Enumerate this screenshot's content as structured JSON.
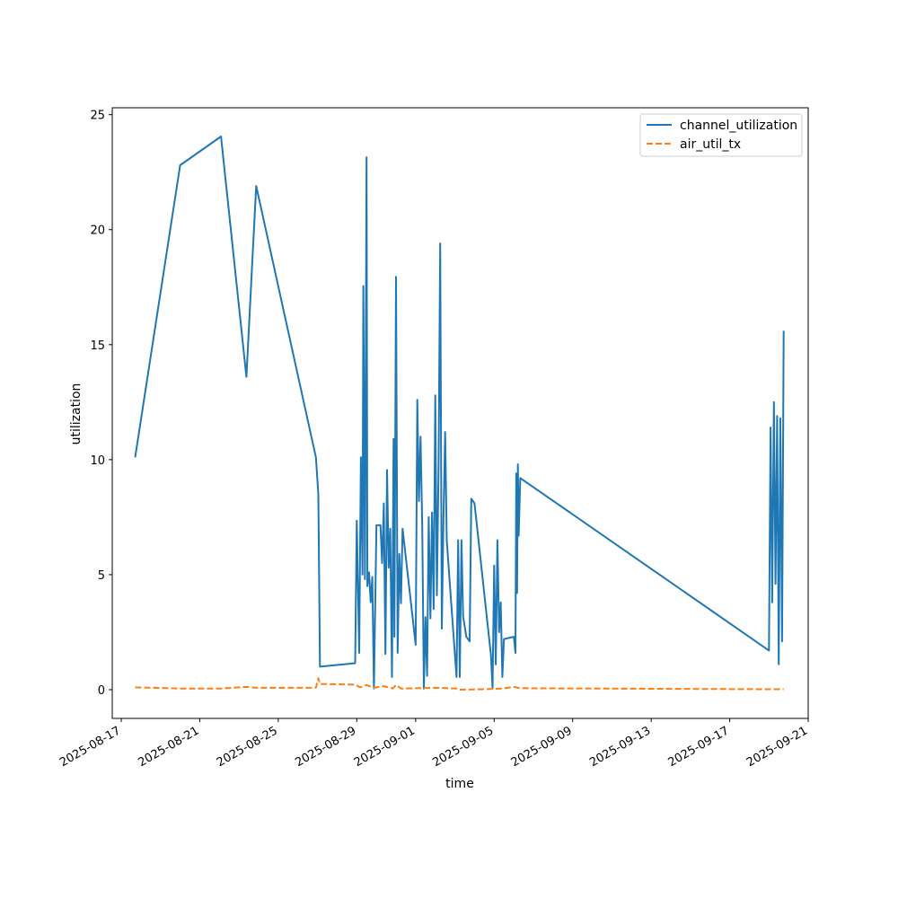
{
  "chart_data": {
    "type": "line",
    "title": "",
    "xlabel": "time",
    "ylabel": "utilization",
    "x_axis_type": "date",
    "xlim": [
      "2025-08-16T13:00",
      "2025-09-21T00:00"
    ],
    "ylim": [
      -1.25,
      25.3
    ],
    "x_ticks": [
      "2025-08-17",
      "2025-08-21",
      "2025-08-25",
      "2025-08-29",
      "2025-09-01",
      "2025-09-05",
      "2025-09-09",
      "2025-09-13",
      "2025-09-17",
      "2025-09-21"
    ],
    "y_ticks": [
      0,
      5,
      10,
      15,
      20,
      25
    ],
    "grid": false,
    "legend_position": "top-right",
    "series": [
      {
        "name": "channel_utilization",
        "color": "#1f77b4",
        "style": "solid",
        "points": [
          [
            "2025-08-17T17:00",
            10.1
          ],
          [
            "2025-08-20T00:00",
            22.8
          ],
          [
            "2025-08-22T02:00",
            24.05
          ],
          [
            "2025-08-23T09:00",
            13.6
          ],
          [
            "2025-08-23T17:00",
            19.1
          ],
          [
            "2025-08-23T21:00",
            21.9
          ],
          [
            "2025-08-26T22:00",
            10.1
          ],
          [
            "2025-08-27T01:00",
            8.5
          ],
          [
            "2025-08-27T03:00",
            1.0
          ],
          [
            "2025-08-28T22:00",
            1.15
          ],
          [
            "2025-08-29T00:00",
            7.35
          ],
          [
            "2025-08-29T03:00",
            1.6
          ],
          [
            "2025-08-29T05:00",
            10.1
          ],
          [
            "2025-08-29T07:00",
            5.0
          ],
          [
            "2025-08-29T08:00",
            17.55
          ],
          [
            "2025-08-29T10:00",
            4.8
          ],
          [
            "2025-08-29T12:00",
            23.15
          ],
          [
            "2025-08-29T13:00",
            4.5
          ],
          [
            "2025-08-29T15:00",
            5.1
          ],
          [
            "2025-08-29T17:00",
            3.8
          ],
          [
            "2025-08-29T19:00",
            4.9
          ],
          [
            "2025-08-29T21:00",
            0.05
          ],
          [
            "2025-08-30T00:00",
            7.15
          ],
          [
            "2025-08-30T05:00",
            7.15
          ],
          [
            "2025-08-30T07:00",
            5.5
          ],
          [
            "2025-08-30T09:00",
            8.1
          ],
          [
            "2025-08-30T11:00",
            1.55
          ],
          [
            "2025-08-30T13:00",
            9.55
          ],
          [
            "2025-08-30T15:00",
            5.3
          ],
          [
            "2025-08-30T17:00",
            7.0
          ],
          [
            "2025-08-30T19:00",
            0.55
          ],
          [
            "2025-08-30T21:00",
            10.9
          ],
          [
            "2025-08-30T22:00",
            2.3
          ],
          [
            "2025-08-31T00:00",
            17.95
          ],
          [
            "2025-08-31T02:00",
            1.6
          ],
          [
            "2025-08-31T04:00",
            5.9
          ],
          [
            "2025-08-31T06:00",
            3.75
          ],
          [
            "2025-08-31T08:00",
            7.0
          ],
          [
            "2025-09-01T00:00",
            1.95
          ],
          [
            "2025-09-01T02:00",
            12.6
          ],
          [
            "2025-09-01T04:00",
            8.2
          ],
          [
            "2025-09-01T06:00",
            11.0
          ],
          [
            "2025-09-01T08:00",
            7.1
          ],
          [
            "2025-09-01T10:00",
            0.05
          ],
          [
            "2025-09-01T12:00",
            3.15
          ],
          [
            "2025-09-01T14:00",
            0.6
          ],
          [
            "2025-09-01T16:00",
            7.5
          ],
          [
            "2025-09-01T18:00",
            3.1
          ],
          [
            "2025-09-01T20:00",
            7.7
          ],
          [
            "2025-09-01T22:00",
            3.5
          ],
          [
            "2025-09-02T00:00",
            12.8
          ],
          [
            "2025-09-02T02:00",
            4.1
          ],
          [
            "2025-09-02T04:00",
            9.8
          ],
          [
            "2025-09-02T06:00",
            19.4
          ],
          [
            "2025-09-02T08:00",
            2.65
          ],
          [
            "2025-09-02T10:00",
            7.4
          ],
          [
            "2025-09-02T12:00",
            11.2
          ],
          [
            "2025-09-02T14:00",
            6.5
          ],
          [
            "2025-09-02T18:00",
            4.5
          ],
          [
            "2025-09-03T02:00",
            0.55
          ],
          [
            "2025-09-03T04:00",
            6.5
          ],
          [
            "2025-09-03T06:00",
            0.55
          ],
          [
            "2025-09-03T08:00",
            6.5
          ],
          [
            "2025-09-03T10:00",
            3.2
          ],
          [
            "2025-09-03T14:00",
            2.3
          ],
          [
            "2025-09-03T18:00",
            2.1
          ],
          [
            "2025-09-03T20:00",
            8.3
          ],
          [
            "2025-09-04T00:00",
            8.1
          ],
          [
            "2025-09-04T20:00",
            1.5
          ],
          [
            "2025-09-04T22:00",
            0.05
          ],
          [
            "2025-09-05T00:00",
            5.4
          ],
          [
            "2025-09-05T02:00",
            1.1
          ],
          [
            "2025-09-05T04:00",
            6.5
          ],
          [
            "2025-09-05T06:00",
            2.5
          ],
          [
            "2025-09-05T08:00",
            3.8
          ],
          [
            "2025-09-05T10:00",
            0.55
          ],
          [
            "2025-09-05T12:00",
            2.2
          ],
          [
            "2025-09-06T00:00",
            2.3
          ],
          [
            "2025-09-06T02:00",
            1.6
          ],
          [
            "2025-09-06T03:00",
            9.4
          ],
          [
            "2025-09-06T04:00",
            4.2
          ],
          [
            "2025-09-06T05:00",
            9.8
          ],
          [
            "2025-09-06T06:00",
            6.7
          ],
          [
            "2025-09-06T08:00",
            9.2
          ],
          [
            "2025-09-19T00:00",
            1.7
          ],
          [
            "2025-09-19T02:00",
            11.4
          ],
          [
            "2025-09-19T04:00",
            3.8
          ],
          [
            "2025-09-19T06:00",
            12.5
          ],
          [
            "2025-09-19T08:00",
            4.6
          ],
          [
            "2025-09-19T10:00",
            11.9
          ],
          [
            "2025-09-19T12:00",
            1.1
          ],
          [
            "2025-09-19T14:00",
            11.8
          ],
          [
            "2025-09-19T16:00",
            2.1
          ],
          [
            "2025-09-19T18:00",
            15.6
          ]
        ]
      },
      {
        "name": "air_util_tx",
        "color": "#ff7f0e",
        "style": "dashed",
        "points": [
          [
            "2025-08-17T17:00",
            0.1
          ],
          [
            "2025-08-20T00:00",
            0.05
          ],
          [
            "2025-08-22T02:00",
            0.05
          ],
          [
            "2025-08-23T09:00",
            0.12
          ],
          [
            "2025-08-23T21:00",
            0.08
          ],
          [
            "2025-08-26T22:00",
            0.08
          ],
          [
            "2025-08-27T01:00",
            0.5
          ],
          [
            "2025-08-27T03:00",
            0.25
          ],
          [
            "2025-08-28T22:00",
            0.22
          ],
          [
            "2025-08-29T04:00",
            0.1
          ],
          [
            "2025-08-29T12:00",
            0.2
          ],
          [
            "2025-08-29T21:00",
            0.08
          ],
          [
            "2025-08-30T09:00",
            0.15
          ],
          [
            "2025-08-30T20:00",
            0.05
          ],
          [
            "2025-08-31T00:00",
            0.2
          ],
          [
            "2025-08-31T06:00",
            0.05
          ],
          [
            "2025-09-01T00:00",
            0.06
          ],
          [
            "2025-09-02T00:00",
            0.08
          ],
          [
            "2025-09-03T02:00",
            0.05
          ],
          [
            "2025-09-03T06:00",
            0.0
          ],
          [
            "2025-09-04T12:00",
            0.02
          ],
          [
            "2025-09-05T10:00",
            0.05
          ],
          [
            "2025-09-06T00:00",
            0.12
          ],
          [
            "2025-09-06T08:00",
            0.06
          ],
          [
            "2025-09-19T00:00",
            0.02
          ],
          [
            "2025-09-19T18:00",
            0.02
          ]
        ]
      }
    ]
  }
}
